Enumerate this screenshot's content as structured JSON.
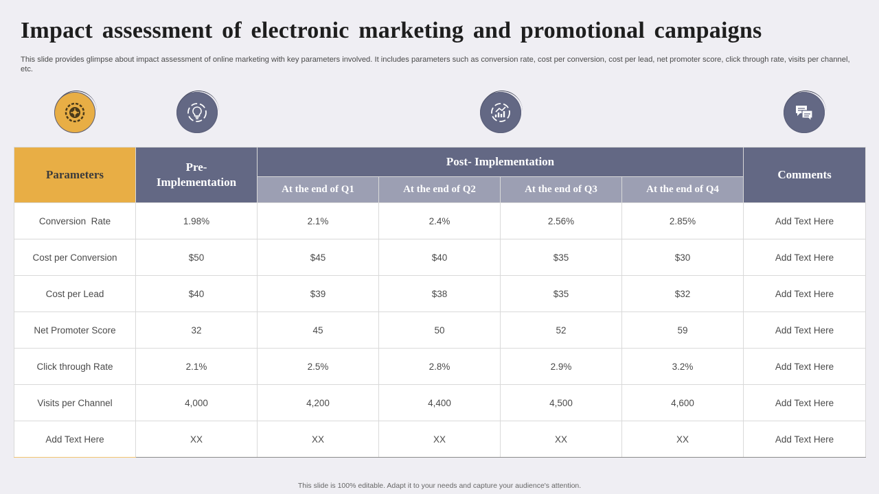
{
  "title": "Impact assessment of electronic marketing and promotional campaigns",
  "subtitle": "This slide provides glimpse about impact assessment of online marketing with key parameters involved. It includes parameters such as conversion rate, cost per conversion, cost per lead, net promoter score, click through rate, visits per channel, etc.",
  "icons": [
    "network-gear-icon",
    "lightbulb-cycle-icon",
    "growth-chart-icon",
    "chat-bubbles-icon"
  ],
  "colors": {
    "accent": "#e8ae45",
    "header": "#636884",
    "subheader": "#9c9fb3",
    "background": "#efeef3"
  },
  "table": {
    "headers": {
      "parameters": "Parameters",
      "pre_implementation": "Pre-\nImplementation",
      "post_implementation": "Post- Implementation",
      "comments": "Comments",
      "quarters": [
        "At the end of Q1",
        "At the end of Q2",
        "At the end of Q3",
        "At the end of Q4"
      ]
    },
    "rows": [
      {
        "parameter": "Conversion  Rate",
        "pre": "1.98%",
        "q1": "2.1%",
        "q2": "2.4%",
        "q3": "2.56%",
        "q4": "2.85%",
        "comment": "Add Text Here"
      },
      {
        "parameter": "Cost per Conversion",
        "pre": "$50",
        "q1": "$45",
        "q2": "$40",
        "q3": "$35",
        "q4": "$30",
        "comment": "Add Text Here"
      },
      {
        "parameter": "Cost per Lead",
        "pre": "$40",
        "q1": "$39",
        "q2": "$38",
        "q3": "$35",
        "q4": "$32",
        "comment": "Add Text Here"
      },
      {
        "parameter": "Net Promoter Score",
        "pre": "32",
        "q1": "45",
        "q2": "50",
        "q3": "52",
        "q4": "59",
        "comment": "Add Text Here"
      },
      {
        "parameter": "Click through Rate",
        "pre": "2.1%",
        "q1": "2.5%",
        "q2": "2.8%",
        "q3": "2.9%",
        "q4": "3.2%",
        "comment": "Add Text Here"
      },
      {
        "parameter": "Visits per Channel",
        "pre": "4,000",
        "q1": "4,200",
        "q2": "4,400",
        "q3": "4,500",
        "q4": "4,600",
        "comment": "Add Text Here"
      },
      {
        "parameter": "Add Text Here",
        "pre": "XX",
        "q1": "XX",
        "q2": "XX",
        "q3": "XX",
        "q4": "XX",
        "comment": "Add Text Here"
      }
    ]
  },
  "footer": "This slide is 100% editable.  Adapt it to your needs and capture your audience's attention."
}
